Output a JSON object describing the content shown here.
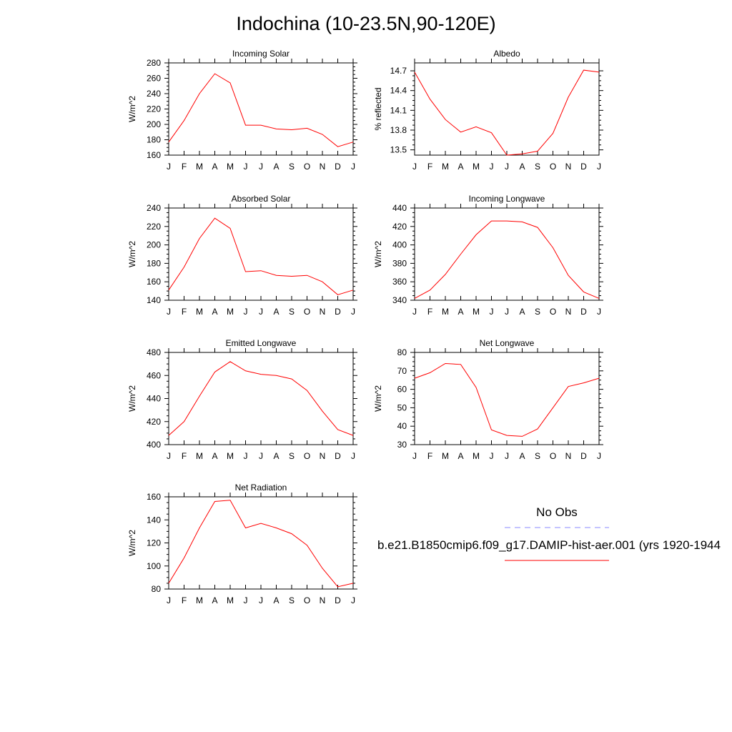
{
  "title": "Indochina (10-23.5N,90-120E)",
  "line_color": "#ff0000",
  "obs_color": "#8888ff",
  "chart_data": [
    {
      "type": "line",
      "title": "Incoming Solar",
      "ylabel": "W/m^2",
      "x": [
        "J",
        "F",
        "M",
        "A",
        "M",
        "J",
        "J",
        "A",
        "S",
        "O",
        "N",
        "D",
        "J"
      ],
      "ylim": [
        160,
        280
      ],
      "yticks": [
        160,
        180,
        200,
        220,
        240,
        260,
        280
      ],
      "ytick_labels": [
        "160",
        "180",
        "200",
        "220",
        "240",
        "260",
        "280"
      ],
      "series": [
        {
          "values": [
            177,
            205,
            240,
            266,
            254,
            199,
            199,
            194,
            193,
            195,
            187,
            171,
            177
          ]
        }
      ]
    },
    {
      "type": "line",
      "title": "Albedo",
      "ylabel": "% reflected",
      "x": [
        "J",
        "F",
        "M",
        "A",
        "M",
        "J",
        "J",
        "A",
        "S",
        "O",
        "N",
        "D",
        "J"
      ],
      "ylim": [
        13.42,
        14.82
      ],
      "yticks": [
        13.5,
        13.8,
        14.1,
        14.4,
        14.7
      ],
      "ytick_labels": [
        "13.5",
        "13.8",
        "14.1",
        "14.4",
        "14.7"
      ],
      "series": [
        {
          "values": [
            14.68,
            14.27,
            13.96,
            13.77,
            13.85,
            13.76,
            13.42,
            13.44,
            13.48,
            13.75,
            14.3,
            14.71,
            14.68
          ]
        }
      ]
    },
    {
      "type": "line",
      "title": "Absorbed Solar",
      "ylabel": "W/m^2",
      "x": [
        "J",
        "F",
        "M",
        "A",
        "M",
        "J",
        "J",
        "A",
        "S",
        "O",
        "N",
        "D",
        "J"
      ],
      "ylim": [
        140,
        240
      ],
      "yticks": [
        140,
        160,
        180,
        200,
        220,
        240
      ],
      "ytick_labels": [
        "140",
        "160",
        "180",
        "200",
        "220",
        "240"
      ],
      "series": [
        {
          "values": [
            151,
            176,
            207,
            229,
            218,
            171,
            172,
            167,
            166,
            167,
            160,
            146,
            151
          ]
        }
      ]
    },
    {
      "type": "line",
      "title": "Incoming Longwave",
      "ylabel": "W/m^2",
      "x": [
        "J",
        "F",
        "M",
        "A",
        "M",
        "J",
        "J",
        "A",
        "S",
        "O",
        "N",
        "D",
        "J"
      ],
      "ylim": [
        340,
        440
      ],
      "yticks": [
        340,
        360,
        380,
        400,
        420,
        440
      ],
      "ytick_labels": [
        "340",
        "360",
        "380",
        "400",
        "420",
        "440"
      ],
      "series": [
        {
          "values": [
            342,
            351,
            368,
            390,
            411,
            426,
            426,
            425,
            419,
            397,
            367,
            349,
            342
          ]
        }
      ]
    },
    {
      "type": "line",
      "title": "Emitted Longwave",
      "ylabel": "W/m^2",
      "x": [
        "J",
        "F",
        "M",
        "A",
        "M",
        "J",
        "J",
        "A",
        "S",
        "O",
        "N",
        "D",
        "J"
      ],
      "ylim": [
        400,
        480
      ],
      "yticks": [
        400,
        420,
        440,
        460,
        480
      ],
      "ytick_labels": [
        "400",
        "420",
        "440",
        "460",
        "480"
      ],
      "series": [
        {
          "values": [
            408,
            420,
            442,
            463,
            472,
            464,
            461,
            460,
            457,
            447,
            429,
            413,
            408
          ]
        }
      ]
    },
    {
      "type": "line",
      "title": "Net Longwave",
      "ylabel": "W/m^2",
      "x": [
        "J",
        "F",
        "M",
        "A",
        "M",
        "J",
        "J",
        "A",
        "S",
        "O",
        "N",
        "D",
        "J"
      ],
      "ylim": [
        30,
        80
      ],
      "yticks": [
        30,
        40,
        50,
        60,
        70,
        80
      ],
      "ytick_labels": [
        "30",
        "40",
        "50",
        "60",
        "70",
        "80"
      ],
      "series": [
        {
          "values": [
            66,
            69,
            74,
            73.5,
            61,
            38,
            35,
            34.5,
            38.5,
            50,
            61.5,
            63.5,
            66
          ]
        }
      ]
    },
    {
      "type": "line",
      "title": "Net Radiation",
      "ylabel": "W/m^2",
      "x": [
        "J",
        "F",
        "M",
        "A",
        "M",
        "J",
        "J",
        "A",
        "S",
        "O",
        "N",
        "D",
        "J"
      ],
      "ylim": [
        80,
        160
      ],
      "yticks": [
        80,
        100,
        120,
        140,
        160
      ],
      "ytick_labels": [
        "80",
        "100",
        "120",
        "140",
        "160"
      ],
      "series": [
        {
          "values": [
            85,
            107,
            133,
            156,
            157,
            133,
            137,
            133,
            128,
            118,
            98,
            82,
            85
          ]
        }
      ]
    }
  ],
  "legend": {
    "obs_label": "No Obs",
    "model_label": "b.e21.B1850cmip6.f09_g17.DAMIP-hist-aer.001 (yrs 1920-1944"
  }
}
